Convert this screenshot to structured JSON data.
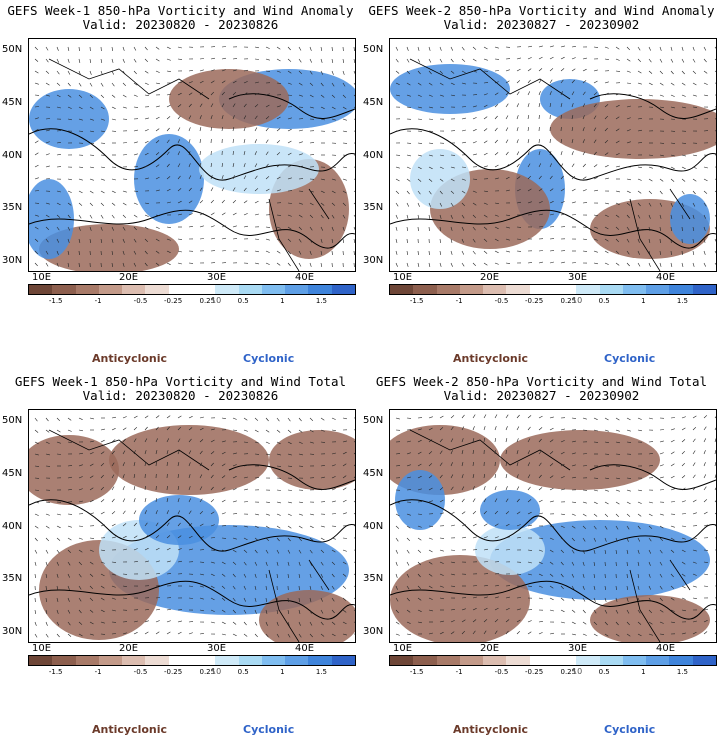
{
  "panels": [
    {
      "title_line1": "GEFS Week-1 850-hPa Vorticity and Wind Anomaly",
      "title_line2": "Valid: 20230820 - 20230826"
    },
    {
      "title_line1": "GEFS Week-2 850-hPa Vorticity and Wind Anomaly",
      "title_line2": "Valid: 20230827 - 20230902"
    },
    {
      "title_line1": "GEFS Week-1 850-hPa Vorticity and Wind Total",
      "title_line2": "Valid: 20230820 - 20230826"
    },
    {
      "title_line1": "GEFS Week-2 850-hPa Vorticity and Wind Total",
      "title_line2": "Valid: 20230827 - 20230902"
    }
  ],
  "lat_labels": [
    "50N",
    "45N",
    "40N",
    "35N",
    "30N"
  ],
  "lon_labels": [
    "10E",
    "20E",
    "30E",
    "40E"
  ],
  "colorbar_ticks": [
    "-1.5",
    "-1",
    "-0.5",
    "-0.25",
    "0.25",
    "0.5",
    "1",
    "1.5"
  ],
  "colorbar_colors": [
    "#6e4637",
    "#8d5f4e",
    "#a87a68",
    "#c39a89",
    "#dcbdb0",
    "#eddcd4",
    "#ffffff",
    "#ffffff",
    "#cfeaf8",
    "#a9daf3",
    "#7fbdf0",
    "#5e9fe6",
    "#3f84db",
    "#2f63c8"
  ],
  "vector_reference": "10",
  "legend": {
    "anticyclonic": "Anticyclonic",
    "cyclonic": "Cyclonic"
  },
  "colors": {
    "anticyclonic": "#6b3a2a",
    "cyclonic": "#2f63c8",
    "brown": "#9b6a5a",
    "blue": "#4a8fe0",
    "lightblue": "#bfe0f7"
  }
}
